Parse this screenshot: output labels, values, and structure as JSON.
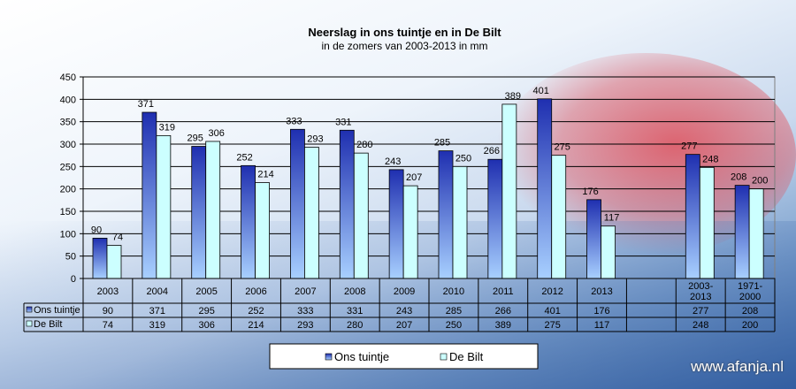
{
  "chart_data": {
    "type": "bar",
    "title": "Neerslag in ons tuintje en in De Bilt",
    "subtitle": "in de zomers van 2003-2013 in mm",
    "xlabel": "",
    "ylabel": "",
    "categories": [
      "2003",
      "2004",
      "2005",
      "2006",
      "2007",
      "2008",
      "2009",
      "2010",
      "2011",
      "2012",
      "2013",
      "",
      "2003-\n2013",
      "1971-\n2000"
    ],
    "series": [
      {
        "name": "Ons tuintje",
        "values": [
          90,
          371,
          295,
          252,
          333,
          331,
          243,
          285,
          266,
          401,
          176,
          null,
          277,
          208
        ],
        "color": "#1f2fb0"
      },
      {
        "name": "De Bilt",
        "values": [
          74,
          319,
          306,
          214,
          293,
          280,
          207,
          250,
          389,
          275,
          117,
          null,
          248,
          200
        ],
        "color": "#ccffff"
      }
    ],
    "ylim": [
      0,
      450
    ],
    "yticks": [
      0,
      50,
      100,
      150,
      200,
      250,
      300,
      350,
      400,
      450
    ],
    "grid": true,
    "data_labels": true,
    "data_table": true,
    "legend_position": "bottom"
  },
  "watermark": "www.afanja.nl"
}
